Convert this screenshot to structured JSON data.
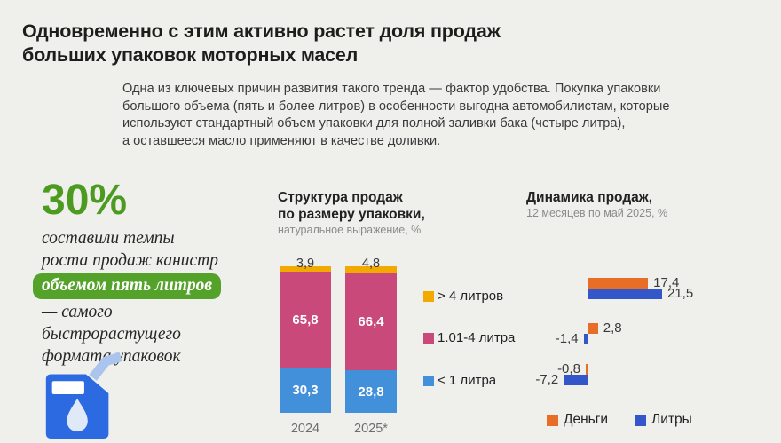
{
  "header": {
    "title_lines": [
      "Одновременно с этим активно растет доля продаж",
      "больших упаковок моторных масел"
    ]
  },
  "intro_lines": [
    "Одна из ключевых причин развития такого тренда — фактор удобства. Покупка упаковки",
    "большого объема (пять и более литров) в особенности выгодна автомобилистам, которые",
    "используют стандартный объем упаковки для полной заливки бака (четыре литра),",
    "а оставшееся масло применяют в качестве доливки."
  ],
  "stat": {
    "value": "30%",
    "lines_before": [
      "составили темпы",
      "роста продаж канистр"
    ],
    "highlight": "объемом пять литров",
    "lines_after": [
      "— самого",
      "быстрорастущего",
      "формата упаковок"
    ],
    "icon": "oil-canister-icon"
  },
  "colors": {
    "background": "#efefec",
    "accent_green": "#4c9b21",
    "highlight_green": "#55a22a",
    "yellow": "#f2a900",
    "pink": "#c8497a",
    "light_blue": "#4290d9",
    "orange": "#e86e28",
    "royal_blue": "#3356c8"
  },
  "chart_data": [
    {
      "type": "bar",
      "variant": "stacked-column-100",
      "title_lines": [
        "Структура продаж",
        "по размеру упаковки,"
      ],
      "subtitle": "натуральное выражение, %",
      "categories": [
        "2024",
        "2025*"
      ],
      "series": [
        {
          "name": "> 4 литров",
          "color": "#f2a900",
          "values": [
            3.9,
            4.8
          ],
          "labels": [
            "3,9",
            "4,8"
          ]
        },
        {
          "name": "1.01-4 литра",
          "color": "#c8497a",
          "values": [
            65.8,
            66.4
          ],
          "labels": [
            "65,8",
            "66,4"
          ]
        },
        {
          "name": "< 1 литра",
          "color": "#4290d9",
          "values": [
            30.3,
            28.8
          ],
          "labels": [
            "30,3",
            "28,8"
          ]
        }
      ],
      "ylim": [
        0,
        100
      ],
      "legend_position": "right"
    },
    {
      "type": "bar",
      "variant": "horizontal-grouped",
      "title_lines": [
        "Динамика продаж,"
      ],
      "subtitle": "12 месяцев по май 2025, %",
      "categories": [
        "> 4 литров",
        "1.01-4 литра",
        "< 1 литра"
      ],
      "series": [
        {
          "name": "Деньги",
          "color": "#e86e28",
          "values": [
            17.4,
            2.8,
            -0.8
          ],
          "labels": [
            "17,4",
            "2,8",
            "-0,8"
          ]
        },
        {
          "name": "Литры",
          "color": "#3356c8",
          "values": [
            21.5,
            -1.4,
            -7.2
          ],
          "labels": [
            "21,5",
            "-1,4",
            "-7,2"
          ]
        }
      ],
      "legend_position": "bottom"
    }
  ]
}
